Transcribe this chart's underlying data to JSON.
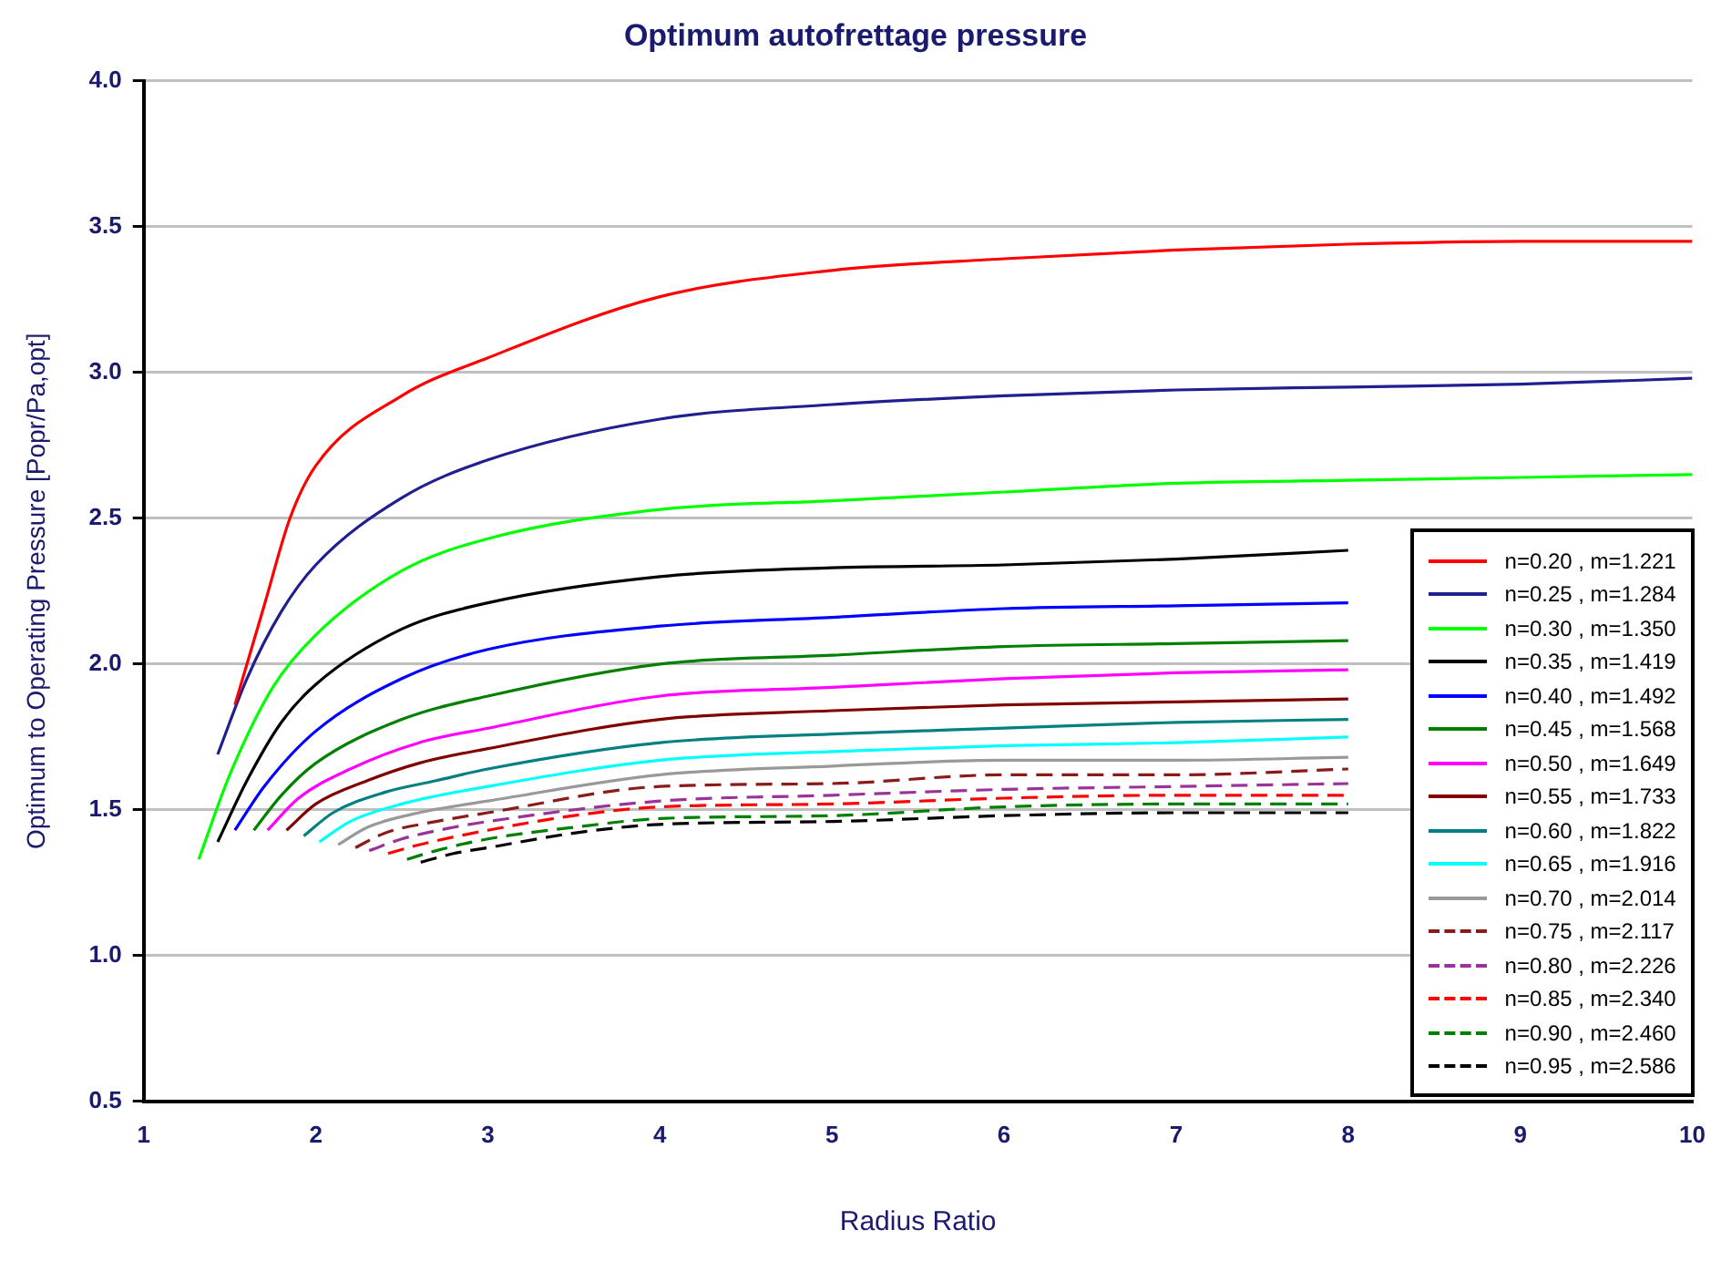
{
  "chart_data": {
    "type": "line",
    "title": "Optimum autofrettage pressure",
    "xlabel": "Radius Ratio",
    "ylabel": "Optimum to Operating Pressure [Popr/Pa,opt]",
    "xlim": [
      1,
      10
    ],
    "xticks": [
      1,
      2,
      3,
      4,
      5,
      6,
      7,
      8,
      9,
      10
    ],
    "ylim": [
      0.5,
      4.0
    ],
    "yticks": [
      0.5,
      {
        "value": 1,
        "label": "1.0"
      },
      1.5,
      {
        "value": 2,
        "label": "2.0"
      },
      2.5,
      {
        "value": 3,
        "label": "3.0"
      },
      3.5,
      {
        "value": 4,
        "label": "4.0"
      }
    ],
    "grid": "y",
    "legend": "bottom right",
    "series": [
      {
        "name": "n=0.20 , m=1.221",
        "color": "#ff0000",
        "line_style": "solid",
        "x": [
          1.53,
          1.7,
          1.85,
          2,
          2.5,
          3,
          4,
          5,
          6,
          7,
          8,
          9,
          10
        ],
        "values": [
          1.86,
          2.2,
          2.5,
          2.68,
          2.92,
          3.05,
          3.26,
          3.35,
          3.39,
          3.42,
          3.44,
          3.45,
          3.45
        ]
      },
      {
        "name": "n=0.25 , m=1.284",
        "color": "#1f1f8f",
        "line_style": "solid",
        "x": [
          1.43,
          1.6,
          1.8,
          2,
          2.5,
          3,
          4,
          5,
          6,
          7,
          8,
          9,
          10
        ],
        "values": [
          1.69,
          1.95,
          2.18,
          2.34,
          2.57,
          2.7,
          2.84,
          2.89,
          2.92,
          2.94,
          2.95,
          2.96,
          2.98
        ]
      },
      {
        "name": "n=0.30 , m=1.350",
        "color": "#00ff00",
        "line_style": "solid",
        "x": [
          1.32,
          1.5,
          1.75,
          2,
          2.5,
          3,
          4,
          5,
          6,
          7,
          8,
          9,
          10
        ],
        "values": [
          1.33,
          1.62,
          1.92,
          2.1,
          2.32,
          2.43,
          2.53,
          2.56,
          2.59,
          2.62,
          2.63,
          2.64,
          2.65
        ]
      },
      {
        "name": "n=0.35 , m=1.419",
        "color": "#000000",
        "line_style": "solid",
        "x": [
          1.43,
          1.6,
          1.8,
          2,
          2.5,
          3,
          4,
          5,
          6,
          7,
          8
        ],
        "values": [
          1.39,
          1.6,
          1.8,
          1.93,
          2.12,
          2.21,
          2.3,
          2.33,
          2.34,
          2.36,
          2.39
        ]
      },
      {
        "name": "n=0.40 , m=1.492",
        "color": "#0000ff",
        "line_style": "solid",
        "x": [
          1.53,
          1.7,
          2,
          2.5,
          3,
          4,
          5,
          6,
          7,
          8
        ],
        "values": [
          1.43,
          1.58,
          1.77,
          1.95,
          2.05,
          2.13,
          2.16,
          2.19,
          2.2,
          2.21
        ]
      },
      {
        "name": "n=0.45 , m=1.568",
        "color": "#008000",
        "line_style": "solid",
        "x": [
          1.64,
          1.8,
          2,
          2.5,
          3,
          4,
          5,
          6,
          7,
          8
        ],
        "values": [
          1.43,
          1.55,
          1.66,
          1.81,
          1.89,
          2.0,
          2.03,
          2.06,
          2.07,
          2.08
        ]
      },
      {
        "name": "n=0.50 , m=1.649",
        "color": "#ff00ff",
        "line_style": "solid",
        "x": [
          1.72,
          1.9,
          2.2,
          2.6,
          3,
          4,
          5,
          6,
          7,
          8
        ],
        "values": [
          1.43,
          1.54,
          1.64,
          1.73,
          1.78,
          1.89,
          1.92,
          1.95,
          1.97,
          1.98
        ]
      },
      {
        "name": "n=0.55 , m=1.733",
        "color": "#800000",
        "line_style": "solid",
        "x": [
          1.83,
          2,
          2.3,
          2.6,
          3,
          4,
          5,
          6,
          7,
          8
        ],
        "values": [
          1.43,
          1.52,
          1.6,
          1.66,
          1.71,
          1.81,
          1.84,
          1.86,
          1.87,
          1.88
        ]
      },
      {
        "name": "n=0.60 , m=1.822",
        "color": "#008080",
        "line_style": "solid",
        "x": [
          1.93,
          2.1,
          2.4,
          2.7,
          3,
          4,
          5,
          6,
          7,
          8
        ],
        "values": [
          1.41,
          1.49,
          1.56,
          1.6,
          1.64,
          1.73,
          1.76,
          1.78,
          1.8,
          1.81
        ]
      },
      {
        "name": "n=0.65 , m=1.916",
        "color": "#00ffff",
        "line_style": "solid",
        "x": [
          2.02,
          2.2,
          2.5,
          3,
          4,
          5,
          6,
          7,
          8
        ],
        "values": [
          1.39,
          1.46,
          1.52,
          1.58,
          1.67,
          1.7,
          1.72,
          1.73,
          1.75
        ]
      },
      {
        "name": "n=0.70 , m=2.014",
        "color": "#999999",
        "line_style": "solid",
        "x": [
          2.13,
          2.3,
          2.6,
          3,
          4,
          5,
          6,
          7,
          8
        ],
        "values": [
          1.38,
          1.44,
          1.49,
          1.53,
          1.62,
          1.65,
          1.67,
          1.67,
          1.68
        ]
      },
      {
        "name": "n=0.75 , m=2.117",
        "color": "#8b1a1a",
        "line_style": "dashed",
        "x": [
          2.23,
          2.4,
          2.7,
          3,
          4,
          5,
          6,
          7,
          8
        ],
        "values": [
          1.37,
          1.42,
          1.46,
          1.49,
          1.58,
          1.59,
          1.62,
          1.62,
          1.64
        ]
      },
      {
        "name": "n=0.80 , m=2.226",
        "color": "#993399",
        "line_style": "dashed",
        "x": [
          2.31,
          2.5,
          2.8,
          3,
          4,
          5,
          6,
          7,
          8
        ],
        "values": [
          1.36,
          1.4,
          1.44,
          1.46,
          1.53,
          1.55,
          1.57,
          1.58,
          1.59
        ]
      },
      {
        "name": "n=0.85 , m=2.340",
        "color": "#ff0000",
        "line_style": "dashed",
        "x": [
          2.42,
          2.6,
          3,
          3.5,
          4,
          5,
          6,
          7,
          8
        ],
        "values": [
          1.35,
          1.38,
          1.43,
          1.48,
          1.51,
          1.52,
          1.54,
          1.55,
          1.55
        ]
      },
      {
        "name": "n=0.90 , m=2.460",
        "color": "#008000",
        "line_style": "dashed",
        "x": [
          2.53,
          2.7,
          3,
          3.5,
          4,
          5,
          6,
          7,
          8
        ],
        "values": [
          1.33,
          1.36,
          1.4,
          1.44,
          1.47,
          1.48,
          1.51,
          1.52,
          1.52
        ]
      },
      {
        "name": "n=0.95 , m=2.586",
        "color": "#000000",
        "line_style": "dashed",
        "x": [
          2.61,
          2.8,
          3,
          3.5,
          4,
          5,
          6,
          7,
          8
        ],
        "values": [
          1.32,
          1.35,
          1.37,
          1.42,
          1.45,
          1.46,
          1.48,
          1.49,
          1.49
        ]
      }
    ]
  }
}
